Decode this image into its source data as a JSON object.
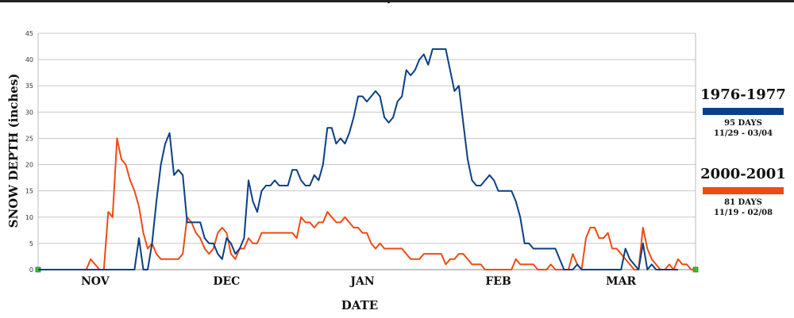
{
  "chart_data": {
    "type": "line",
    "xlabel": "DATE",
    "ylabel": "SNOW DEPTH (inches)",
    "ylim": [
      0,
      45
    ],
    "yticks": [
      0,
      5,
      10,
      15,
      20,
      25,
      30,
      35,
      40,
      45
    ],
    "xlim": [
      0,
      150
    ],
    "month_ticks": [
      {
        "label": "NOV",
        "x": 13
      },
      {
        "label": "DEC",
        "x": 43
      },
      {
        "label": "JAN",
        "x": 74
      },
      {
        "label": "FEB",
        "x": 105
      },
      {
        "label": "MAR",
        "x": 133
      }
    ],
    "grid": true,
    "legend_position": "right",
    "series": [
      {
        "name": "1976-1977",
        "color": "#0a3f86",
        "days_label": "95  DAYS",
        "range_label": "11/29 - 03/04",
        "points": [
          [
            0,
            0
          ],
          [
            21,
            0
          ],
          [
            22,
            0
          ],
          [
            23,
            6
          ],
          [
            24,
            0
          ],
          [
            25,
            0
          ],
          [
            26,
            5
          ],
          [
            27,
            13
          ],
          [
            28,
            20
          ],
          [
            29,
            24
          ],
          [
            30,
            26
          ],
          [
            31,
            18
          ],
          [
            32,
            19
          ],
          [
            33,
            18
          ],
          [
            34,
            9
          ],
          [
            35,
            9
          ],
          [
            36,
            9
          ],
          [
            37,
            9
          ],
          [
            38,
            6
          ],
          [
            39,
            5
          ],
          [
            40,
            5
          ],
          [
            41,
            3
          ],
          [
            42,
            2
          ],
          [
            43,
            6
          ],
          [
            44,
            5
          ],
          [
            45,
            3
          ],
          [
            46,
            4
          ],
          [
            47,
            6
          ],
          [
            48,
            17
          ],
          [
            49,
            13
          ],
          [
            50,
            11
          ],
          [
            51,
            15
          ],
          [
            52,
            16
          ],
          [
            53,
            16
          ],
          [
            54,
            17
          ],
          [
            55,
            16
          ],
          [
            56,
            16
          ],
          [
            57,
            16
          ],
          [
            58,
            19
          ],
          [
            59,
            19
          ],
          [
            60,
            17
          ],
          [
            61,
            16
          ],
          [
            62,
            16
          ],
          [
            63,
            18
          ],
          [
            64,
            17
          ],
          [
            65,
            20
          ],
          [
            66,
            27
          ],
          [
            67,
            27
          ],
          [
            68,
            24
          ],
          [
            69,
            25
          ],
          [
            70,
            24
          ],
          [
            71,
            26
          ],
          [
            72,
            29
          ],
          [
            73,
            33
          ],
          [
            74,
            33
          ],
          [
            75,
            32
          ],
          [
            76,
            33
          ],
          [
            77,
            34
          ],
          [
            78,
            33
          ],
          [
            79,
            29
          ],
          [
            80,
            28
          ],
          [
            81,
            29
          ],
          [
            82,
            32
          ],
          [
            83,
            33
          ],
          [
            84,
            38
          ],
          [
            85,
            37
          ],
          [
            86,
            38
          ],
          [
            87,
            40
          ],
          [
            88,
            41
          ],
          [
            89,
            39
          ],
          [
            90,
            42
          ],
          [
            91,
            42
          ],
          [
            92,
            42
          ],
          [
            93,
            42
          ],
          [
            94,
            38
          ],
          [
            95,
            34
          ],
          [
            96,
            35
          ],
          [
            97,
            28
          ],
          [
            98,
            21
          ],
          [
            99,
            17
          ],
          [
            100,
            16
          ],
          [
            101,
            16
          ],
          [
            102,
            17
          ],
          [
            103,
            18
          ],
          [
            104,
            17
          ],
          [
            105,
            15
          ],
          [
            106,
            15
          ],
          [
            107,
            15
          ],
          [
            108,
            15
          ],
          [
            109,
            13
          ],
          [
            110,
            10
          ],
          [
            111,
            5
          ],
          [
            112,
            5
          ],
          [
            113,
            4
          ],
          [
            114,
            4
          ],
          [
            115,
            4
          ],
          [
            116,
            4
          ],
          [
            117,
            4
          ],
          [
            118,
            4
          ],
          [
            119,
            2
          ],
          [
            120,
            0
          ],
          [
            121,
            0
          ],
          [
            122,
            0
          ],
          [
            123,
            1
          ],
          [
            124,
            0
          ],
          [
            125,
            0
          ],
          [
            126,
            0
          ],
          [
            127,
            0
          ],
          [
            128,
            0
          ],
          [
            129,
            0
          ],
          [
            130,
            0
          ],
          [
            131,
            0
          ],
          [
            132,
            0
          ],
          [
            133,
            0
          ],
          [
            134,
            4
          ],
          [
            135,
            2
          ],
          [
            136,
            1
          ],
          [
            137,
            0
          ],
          [
            138,
            5
          ],
          [
            139,
            0
          ],
          [
            140,
            1
          ],
          [
            141,
            0
          ],
          [
            142,
            0
          ],
          [
            143,
            0
          ],
          [
            144,
            0
          ],
          [
            145,
            0
          ],
          [
            146,
            0
          ]
        ]
      },
      {
        "name": "2000-2001",
        "color": "#f04a14",
        "days_label": "81  DAYS",
        "range_label": "11/19 - 02/08",
        "points": [
          [
            0,
            0
          ],
          [
            10,
            0
          ],
          [
            11,
            0
          ],
          [
            12,
            2
          ],
          [
            13,
            1
          ],
          [
            14,
            0
          ],
          [
            15,
            0
          ],
          [
            16,
            11
          ],
          [
            17,
            10
          ],
          [
            18,
            25
          ],
          [
            19,
            21
          ],
          [
            20,
            20
          ],
          [
            21,
            17
          ],
          [
            22,
            15
          ],
          [
            23,
            12
          ],
          [
            24,
            7
          ],
          [
            25,
            4
          ],
          [
            26,
            5
          ],
          [
            27,
            3
          ],
          [
            28,
            2
          ],
          [
            29,
            2
          ],
          [
            30,
            2
          ],
          [
            31,
            2
          ],
          [
            32,
            2
          ],
          [
            33,
            3
          ],
          [
            34,
            10
          ],
          [
            35,
            9
          ],
          [
            36,
            7
          ],
          [
            37,
            6
          ],
          [
            38,
            4
          ],
          [
            39,
            3
          ],
          [
            40,
            4
          ],
          [
            41,
            7
          ],
          [
            42,
            8
          ],
          [
            43,
            7
          ],
          [
            44,
            3
          ],
          [
            45,
            2
          ],
          [
            46,
            4
          ],
          [
            47,
            4
          ],
          [
            48,
            6
          ],
          [
            49,
            5
          ],
          [
            50,
            5
          ],
          [
            51,
            7
          ],
          [
            52,
            7
          ],
          [
            53,
            7
          ],
          [
            54,
            7
          ],
          [
            55,
            7
          ],
          [
            56,
            7
          ],
          [
            57,
            7
          ],
          [
            58,
            7
          ],
          [
            59,
            6
          ],
          [
            60,
            10
          ],
          [
            61,
            9
          ],
          [
            62,
            9
          ],
          [
            63,
            8
          ],
          [
            64,
            9
          ],
          [
            65,
            9
          ],
          [
            66,
            11
          ],
          [
            67,
            10
          ],
          [
            68,
            9
          ],
          [
            69,
            9
          ],
          [
            70,
            10
          ],
          [
            71,
            9
          ],
          [
            72,
            8
          ],
          [
            73,
            8
          ],
          [
            74,
            7
          ],
          [
            75,
            7
          ],
          [
            76,
            5
          ],
          [
            77,
            4
          ],
          [
            78,
            5
          ],
          [
            79,
            4
          ],
          [
            80,
            4
          ],
          [
            81,
            4
          ],
          [
            82,
            4
          ],
          [
            83,
            4
          ],
          [
            84,
            3
          ],
          [
            85,
            2
          ],
          [
            86,
            2
          ],
          [
            87,
            2
          ],
          [
            88,
            3
          ],
          [
            89,
            3
          ],
          [
            90,
            3
          ],
          [
            91,
            3
          ],
          [
            92,
            3
          ],
          [
            93,
            1
          ],
          [
            94,
            2
          ],
          [
            95,
            2
          ],
          [
            96,
            3
          ],
          [
            97,
            3
          ],
          [
            98,
            2
          ],
          [
            99,
            1
          ],
          [
            100,
            1
          ],
          [
            101,
            1
          ],
          [
            102,
            0
          ],
          [
            103,
            0
          ],
          [
            104,
            0
          ],
          [
            105,
            0
          ],
          [
            106,
            0
          ],
          [
            107,
            0
          ],
          [
            108,
            0
          ],
          [
            109,
            2
          ],
          [
            110,
            1
          ],
          [
            111,
            1
          ],
          [
            112,
            1
          ],
          [
            113,
            1
          ],
          [
            114,
            0
          ],
          [
            115,
            0
          ],
          [
            116,
            0
          ],
          [
            117,
            1
          ],
          [
            118,
            0
          ],
          [
            119,
            0
          ],
          [
            120,
            0
          ],
          [
            121,
            0
          ],
          [
            122,
            3
          ],
          [
            123,
            1
          ],
          [
            124,
            0
          ],
          [
            125,
            6
          ],
          [
            126,
            8
          ],
          [
            127,
            8
          ],
          [
            128,
            6
          ],
          [
            129,
            6
          ],
          [
            130,
            7
          ],
          [
            131,
            4
          ],
          [
            132,
            4
          ],
          [
            133,
            3
          ],
          [
            134,
            2
          ],
          [
            135,
            1
          ],
          [
            136,
            0
          ],
          [
            137,
            0
          ],
          [
            138,
            8
          ],
          [
            139,
            4
          ],
          [
            140,
            2
          ],
          [
            141,
            1
          ],
          [
            142,
            0
          ],
          [
            143,
            0
          ],
          [
            144,
            1
          ],
          [
            145,
            0
          ],
          [
            146,
            2
          ],
          [
            147,
            1
          ],
          [
            148,
            1
          ],
          [
            149,
            0
          ],
          [
            150,
            0
          ]
        ]
      }
    ]
  }
}
